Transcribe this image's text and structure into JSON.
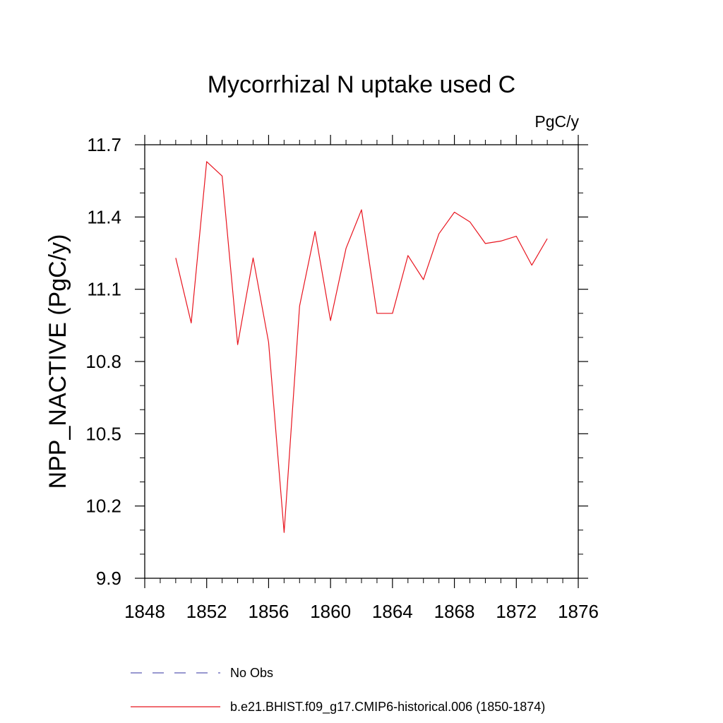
{
  "chart_data": {
    "type": "line",
    "title": "Mycorrhizal N uptake used C",
    "units": "PgC/y",
    "xlabel": "",
    "ylabel": "NPP_NACTIVE  (PgC/y)",
    "xlim": [
      1848,
      1876
    ],
    "ylim": [
      9.9,
      11.7
    ],
    "xticks": [
      1848,
      1852,
      1856,
      1860,
      1864,
      1868,
      1872,
      1876
    ],
    "yticks": [
      9.9,
      10.2,
      10.5,
      10.8,
      11.1,
      11.4,
      11.7
    ],
    "x_tick_labels": [
      "1848",
      "1852",
      "1856",
      "1860",
      "1864",
      "1868",
      "1872",
      "1876"
    ],
    "y_tick_labels": [
      "9.9",
      "10.2",
      "10.5",
      "10.8",
      "11.1",
      "11.4",
      "11.7"
    ],
    "grid": false,
    "series": [
      {
        "name": "b.e21.BHIST.f09_g17.CMIP6-historical.006 (1850-1874)",
        "color": "#e8141e",
        "style": "solid",
        "x": [
          1850,
          1851,
          1852,
          1853,
          1854,
          1855,
          1856,
          1857,
          1858,
          1859,
          1860,
          1861,
          1862,
          1863,
          1864,
          1865,
          1866,
          1867,
          1868,
          1869,
          1870,
          1871,
          1872,
          1873,
          1874
        ],
        "y": [
          11.23,
          10.96,
          11.63,
          11.57,
          10.87,
          11.23,
          10.88,
          10.09,
          11.03,
          11.34,
          10.97,
          11.27,
          11.43,
          11.0,
          11.0,
          11.24,
          11.14,
          11.33,
          11.42,
          11.38,
          11.29,
          11.3,
          11.32,
          11.2,
          11.31
        ]
      }
    ],
    "legend": [
      {
        "label": "No Obs",
        "color": "#5a5ab4",
        "style": "dashed"
      },
      {
        "label": "b.e21.BHIST.f09_g17.CMIP6-historical.006 (1850-1874)",
        "color": "#e8141e",
        "style": "solid"
      }
    ],
    "legend_position": "bottom"
  }
}
